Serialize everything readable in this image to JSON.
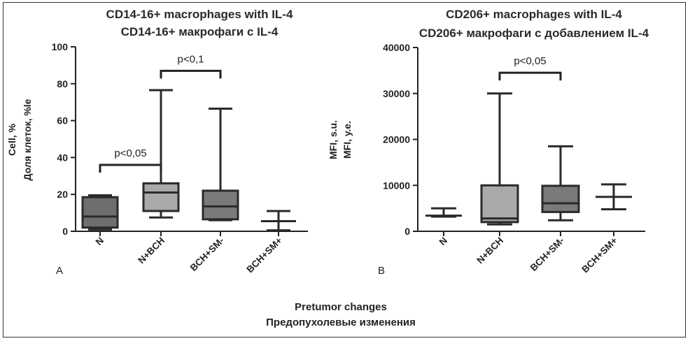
{
  "x_axis_title": [
    "Pretumor changes",
    "Предопухолевые изменения"
  ],
  "chart_data": [
    {
      "type": "boxplot",
      "panel": "A",
      "title": [
        "CD14-16+ macrophages with IL-4",
        "CD14-16+ макрофаги с IL-4"
      ],
      "ylabel": [
        "Cell, %",
        "Доля клеток, %le"
      ],
      "ylim": [
        0,
        100
      ],
      "yticks": [
        0,
        20,
        40,
        60,
        80,
        100
      ],
      "categories": [
        "N",
        "N+BCH",
        "BCH+SM-",
        "BCH+SM+"
      ],
      "boxes": [
        {
          "min": 1,
          "q1": 2,
          "median": 8,
          "q3": 18.5,
          "max": 19.5,
          "fill": "#6e6e6e"
        },
        {
          "min": 7.5,
          "q1": 11,
          "median": 21,
          "q3": 26,
          "max": 76.5,
          "fill": "#a9a9a9"
        },
        {
          "min": 6,
          "q1": 6.5,
          "median": 13.5,
          "q3": 22,
          "max": 66.5,
          "fill": "#7a7a7a"
        },
        {
          "min": 0.5,
          "q1": 5.5,
          "median": 5.5,
          "q3": 5.5,
          "max": 11,
          "fill": "#666666"
        }
      ],
      "brackets": [
        {
          "from": 0,
          "to": 1,
          "label": "p<0,05",
          "y": 36
        },
        {
          "from": 1,
          "to": 2,
          "label": "p<0,1",
          "y": 87
        }
      ]
    },
    {
      "type": "boxplot",
      "panel": "B",
      "title": [
        "CD206+ macrophages with IL-4",
        "CD206+ макрофаги с добавлением IL-4"
      ],
      "ylabel": [
        "MFI, s.u.",
        "MFI, у.е."
      ],
      "ylim": [
        0,
        40000
      ],
      "yticks": [
        0,
        10000,
        20000,
        30000,
        40000
      ],
      "categories": [
        "N",
        "N+BCH",
        "BCH+SM-",
        "BCH+SM+"
      ],
      "boxes": [
        {
          "min": 3200,
          "q1": 3400,
          "median": 3400,
          "q3": 3500,
          "max": 5000,
          "fill": "#666666"
        },
        {
          "min": 1500,
          "q1": 2000,
          "median": 2800,
          "q3": 10000,
          "max": 30000,
          "fill": "#a9a9a9"
        },
        {
          "min": 2400,
          "q1": 4200,
          "median": 6100,
          "q3": 9900,
          "max": 18500,
          "fill": "#7a7a7a"
        },
        {
          "min": 4800,
          "q1": 7500,
          "median": 7500,
          "q3": 7500,
          "max": 10200,
          "fill": "#666666"
        }
      ],
      "brackets": [
        {
          "from": 1,
          "to": 2,
          "label": "p<0,05",
          "y": 34500
        }
      ]
    }
  ]
}
